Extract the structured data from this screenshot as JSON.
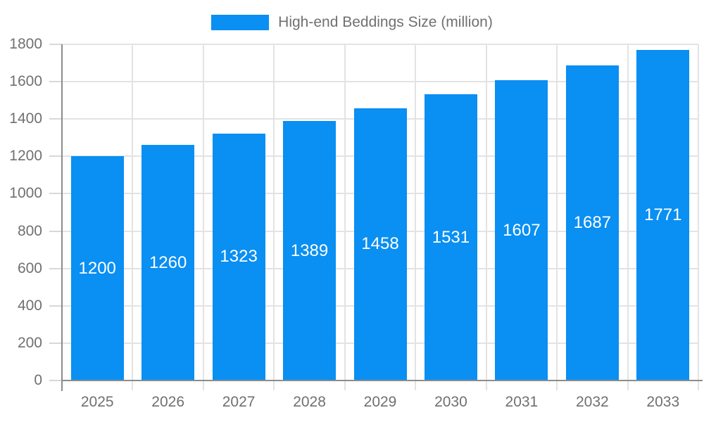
{
  "legend": {
    "label": "High-end Beddings Size (million)"
  },
  "colors": {
    "bar": "#0A8FF2",
    "grid_line": "#E3E3E3",
    "axis_line": "#8C8C8C",
    "tick_line": "#D8D8D8",
    "axis_text": "#707070",
    "bar_value_text": "#FFFFFF",
    "background": "#FFFFFF"
  },
  "chart_data": {
    "type": "bar",
    "title": "High-end Beddings Size (million)",
    "categories": [
      "2025",
      "2026",
      "2027",
      "2028",
      "2029",
      "2030",
      "2031",
      "2032",
      "2033"
    ],
    "series": [
      {
        "name": "High-end Beddings Size (million)",
        "values": [
          1200,
          1260,
          1323,
          1389,
          1458,
          1531,
          1607,
          1687,
          1771
        ]
      }
    ],
    "bar_value_labels": [
      "1200",
      "1260",
      "1323",
      "1389",
      "1458",
      "1531",
      "1607",
      "1687",
      "1771"
    ],
    "xlabel": "",
    "ylabel": "",
    "ylim": [
      0,
      1800
    ],
    "ytick_step": 200,
    "yticks": [
      "0",
      "200",
      "400",
      "600",
      "800",
      "1000",
      "1200",
      "1400",
      "1600",
      "1800"
    ],
    "grid": true,
    "legend_position": "top-center",
    "bar_labels_inside": true
  }
}
